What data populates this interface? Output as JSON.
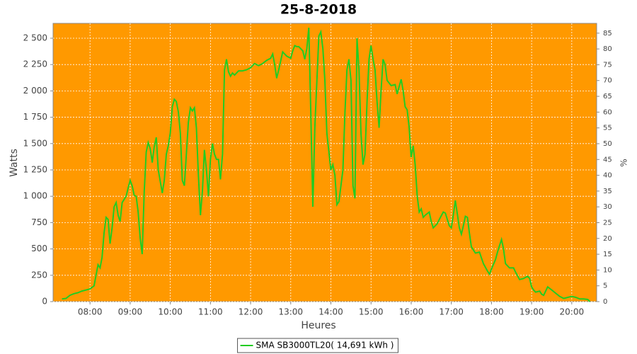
{
  "chart_data": {
    "type": "line",
    "title": "25-8-2018",
    "xlabel": "Heures",
    "ylabel": "Watts",
    "y2label": "%",
    "x": [
      7.3,
      7.4,
      7.5,
      7.6,
      7.7,
      7.8,
      7.9,
      8.0,
      8.1,
      8.15,
      8.2,
      8.25,
      8.3,
      8.35,
      8.4,
      8.45,
      8.5,
      8.55,
      8.6,
      8.65,
      8.7,
      8.75,
      8.8,
      8.9,
      8.95,
      9.0,
      9.05,
      9.1,
      9.15,
      9.2,
      9.25,
      9.3,
      9.35,
      9.4,
      9.45,
      9.5,
      9.55,
      9.6,
      9.65,
      9.7,
      9.8,
      9.85,
      9.9,
      9.95,
      10.0,
      10.05,
      10.1,
      10.15,
      10.2,
      10.25,
      10.3,
      10.35,
      10.4,
      10.45,
      10.5,
      10.55,
      10.6,
      10.65,
      10.7,
      10.75,
      10.8,
      10.85,
      10.9,
      10.95,
      11.0,
      11.05,
      11.1,
      11.15,
      11.2,
      11.25,
      11.3,
      11.35,
      11.4,
      11.45,
      11.5,
      11.55,
      11.6,
      11.7,
      11.8,
      11.9,
      12.0,
      12.1,
      12.2,
      12.3,
      12.4,
      12.5,
      12.55,
      12.6,
      12.65,
      12.7,
      12.8,
      12.9,
      13.0,
      13.05,
      13.1,
      13.15,
      13.2,
      13.3,
      13.35,
      13.4,
      13.45,
      13.5,
      13.55,
      13.6,
      13.7,
      13.75,
      13.8,
      13.85,
      13.9,
      13.95,
      14.0,
      14.05,
      14.1,
      14.15,
      14.2,
      14.25,
      14.3,
      14.35,
      14.4,
      14.45,
      14.5,
      14.55,
      14.6,
      14.65,
      14.7,
      14.75,
      14.8,
      14.85,
      14.9,
      14.95,
      15.0,
      15.05,
      15.1,
      15.15,
      15.2,
      15.25,
      15.3,
      15.35,
      15.4,
      15.5,
      15.6,
      15.65,
      15.75,
      15.8,
      15.85,
      15.9,
      15.95,
      16.0,
      16.05,
      16.1,
      16.15,
      16.2,
      16.25,
      16.3,
      16.35,
      16.45,
      16.5,
      16.55,
      16.65,
      16.7,
      16.8,
      16.85,
      16.9,
      16.95,
      17.0,
      17.05,
      17.1,
      17.15,
      17.2,
      17.25,
      17.3,
      17.35,
      17.4,
      17.45,
      17.5,
      17.6,
      17.7,
      17.8,
      17.9,
      17.95,
      18.0,
      18.1,
      18.15,
      18.2,
      18.25,
      18.3,
      18.35,
      18.45,
      18.55,
      18.6,
      18.7,
      18.8,
      18.9,
      18.95,
      19.0,
      19.05,
      19.1,
      19.2,
      19.25,
      19.3,
      19.4,
      19.5,
      19.6,
      19.7,
      19.8,
      19.9,
      20.0,
      20.1,
      20.2,
      20.3,
      20.4,
      20.45
    ],
    "series": [
      {
        "name": "SMA SB3000TL20( 14,691 kWh )",
        "color": "#22cc22",
        "values": [
          25,
          30,
          60,
          75,
          85,
          100,
          110,
          120,
          150,
          250,
          350,
          320,
          420,
          650,
          800,
          780,
          550,
          700,
          900,
          940,
          820,
          760,
          940,
          1000,
          1080,
          1150,
          1100,
          1010,
          1000,
          850,
          600,
          450,
          1050,
          1420,
          1510,
          1450,
          1320,
          1470,
          1560,
          1250,
          1030,
          1150,
          1400,
          1480,
          1600,
          1850,
          1920,
          1900,
          1800,
          1600,
          1150,
          1100,
          1400,
          1700,
          1840,
          1810,
          1840,
          1650,
          1200,
          820,
          1050,
          1440,
          1250,
          1000,
          1350,
          1500,
          1400,
          1350,
          1350,
          1160,
          1400,
          2200,
          2300,
          2180,
          2140,
          2170,
          2150,
          2190,
          2190,
          2200,
          2220,
          2260,
          2240,
          2260,
          2290,
          2310,
          2350,
          2250,
          2120,
          2200,
          2370,
          2330,
          2310,
          2380,
          2430,
          2420,
          2420,
          2380,
          2300,
          2400,
          2600,
          1800,
          900,
          1650,
          2520,
          2560,
          2400,
          2100,
          1600,
          1420,
          1250,
          1300,
          1200,
          920,
          950,
          1100,
          1250,
          1800,
          2200,
          2300,
          2100,
          1100,
          980,
          2500,
          2200,
          1600,
          1300,
          1400,
          1900,
          2300,
          2430,
          2300,
          2200,
          1900,
          1650,
          2000,
          2300,
          2250,
          2100,
          2050,
          2060,
          1970,
          2110,
          2000,
          1850,
          1820,
          1650,
          1370,
          1480,
          1300,
          1000,
          850,
          880,
          800,
          820,
          850,
          760,
          700,
          740,
          780,
          850,
          840,
          780,
          720,
          700,
          820,
          960,
          830,
          700,
          640,
          720,
          810,
          800,
          650,
          520,
          460,
          470,
          360,
          290,
          260,
          310,
          400,
          470,
          530,
          590,
          500,
          360,
          320,
          320,
          280,
          210,
          220,
          240,
          220,
          140,
          110,
          90,
          100,
          70,
          60,
          140,
          110,
          80,
          50,
          30,
          40,
          50,
          40,
          25,
          25,
          20,
          0
        ]
      }
    ],
    "xlim": [
      7.08,
      20.62
    ],
    "xticks": [
      {
        "value": 8,
        "label": "08:00"
      },
      {
        "value": 9,
        "label": "09:00"
      },
      {
        "value": 10,
        "label": "10:00"
      },
      {
        "value": 11,
        "label": "11:00"
      },
      {
        "value": 12,
        "label": "12:00"
      },
      {
        "value": 13,
        "label": "13:00"
      },
      {
        "value": 14,
        "label": "14:00"
      },
      {
        "value": 15,
        "label": "15:00"
      },
      {
        "value": 16,
        "label": "16:00"
      },
      {
        "value": 17,
        "label": "17:00"
      },
      {
        "value": 18,
        "label": "18:00"
      },
      {
        "value": 19,
        "label": "19:00"
      },
      {
        "value": 20,
        "label": "20:00"
      }
    ],
    "ylim": [
      0,
      2641
    ],
    "yticks": [
      0,
      250,
      500,
      750,
      {
        "value": 1000,
        "label": "1 000"
      },
      {
        "value": 1250,
        "label": "1 250"
      },
      {
        "value": 1500,
        "label": "1 500"
      },
      {
        "value": 1750,
        "label": "1 750"
      },
      {
        "value": 2000,
        "label": "2 000"
      },
      {
        "value": 2250,
        "label": "2 250"
      },
      {
        "value": 2500,
        "label": "2 500"
      }
    ],
    "y2lim": [
      0,
      88.1
    ],
    "y2ticks": [
      0,
      5,
      10,
      15,
      20,
      25,
      30,
      35,
      40,
      45,
      50,
      55,
      60,
      65,
      70,
      75,
      80,
      85
    ],
    "grid": true,
    "plot_background": "#ff9900",
    "legend": "bottom"
  }
}
